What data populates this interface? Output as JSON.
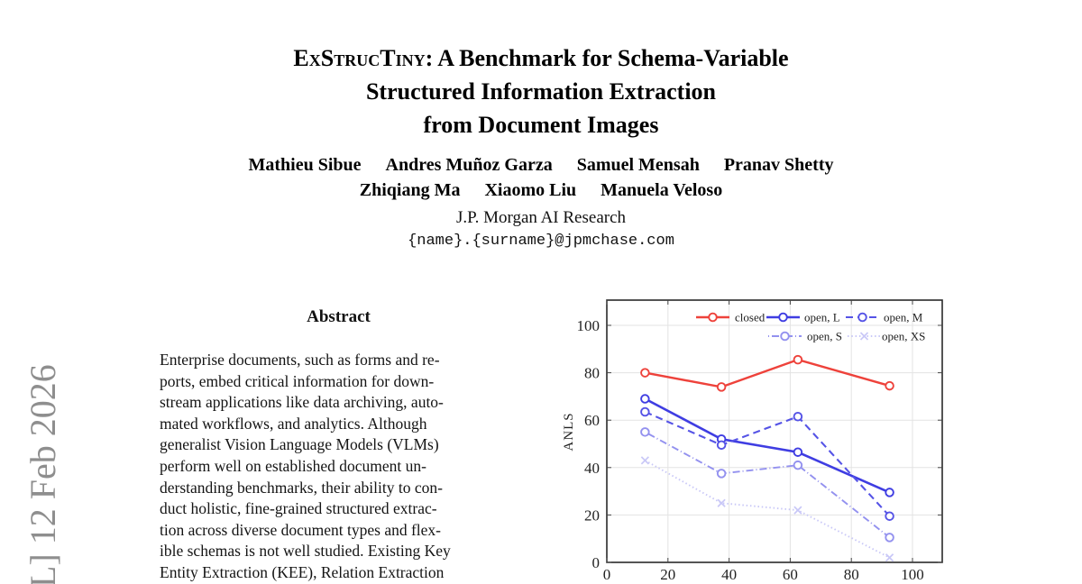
{
  "watermark": {
    "text": "L] 12 Feb 2026"
  },
  "title": {
    "brand": "ExStrucTiny",
    "line1_rest": ": A Benchmark for Schema-Variable",
    "line2": "Structured Information Extraction",
    "line3": "from Document Images"
  },
  "authors": {
    "row1": [
      "Mathieu Sibue",
      "Andres Muñoz Garza",
      "Samuel Mensah",
      "Pranav Shetty"
    ],
    "row2": [
      "Zhiqiang Ma",
      "Xiaomo Liu",
      "Manuela Veloso"
    ]
  },
  "affiliation": "J.P. Morgan AI Research",
  "email": "{name}.{surname}@jpmchase.com",
  "abstract": {
    "heading": "Abstract",
    "text": "Enterprise documents, such as forms and re-\nports, embed critical information for down-\nstream applications like data archiving, auto-\nmated workflows, and analytics. Although\ngeneralist Vision Language Models (VLMs)\nperform well on established document un-\nderstanding benchmarks, their ability to con-\nduct holistic, fine-grained structured extrac-\ntion across diverse document types and flex-\nible schemas is not well studied. Existing Key\nEntity Extraction (KEE), Relation Extraction"
  },
  "chart_data": {
    "type": "line",
    "title": "",
    "xlabel": "",
    "ylabel": "ANLS",
    "x": [
      12.5,
      37.5,
      62.5,
      92.5
    ],
    "series": [
      {
        "name": "closed",
        "color": "#ee423b",
        "dash": "",
        "marker": "circle",
        "width": 2.4,
        "values": [
          80,
          74,
          85.5,
          74.5
        ]
      },
      {
        "name": "open, L",
        "color": "#3f3de2",
        "dash": "",
        "marker": "circle",
        "width": 2.6,
        "values": [
          69,
          52,
          46.5,
          29.5
        ]
      },
      {
        "name": "open, M",
        "color": "#5553e6",
        "dash": "8,5",
        "marker": "circle",
        "width": 2.1,
        "values": [
          63.5,
          49.5,
          61.5,
          19.5
        ]
      },
      {
        "name": "open, S",
        "color": "#9391ef",
        "dash": "1,3,8,3",
        "marker": "circle",
        "width": 1.9,
        "values": [
          55,
          37.5,
          41,
          10.5
        ]
      },
      {
        "name": "open, XS",
        "color": "#c9c8f7",
        "dash": "1.5,2.8",
        "marker": "x",
        "width": 1.9,
        "values": [
          43,
          25,
          22,
          2
        ]
      }
    ],
    "x_ticks": [
      0,
      20,
      40,
      60,
      80,
      100
    ],
    "y_ticks": [
      0,
      20,
      40,
      60,
      80,
      100
    ],
    "xlim": [
      0,
      110
    ],
    "ylim": [
      0,
      110.6
    ],
    "grid": true,
    "legend_position": "top-inside",
    "legend_rows": [
      [
        "closed",
        "open, L",
        "open, M"
      ],
      [
        "open, S",
        "open, XS"
      ]
    ],
    "grid_color": "#e3e3e3",
    "border_color": "#2a2a2a"
  }
}
